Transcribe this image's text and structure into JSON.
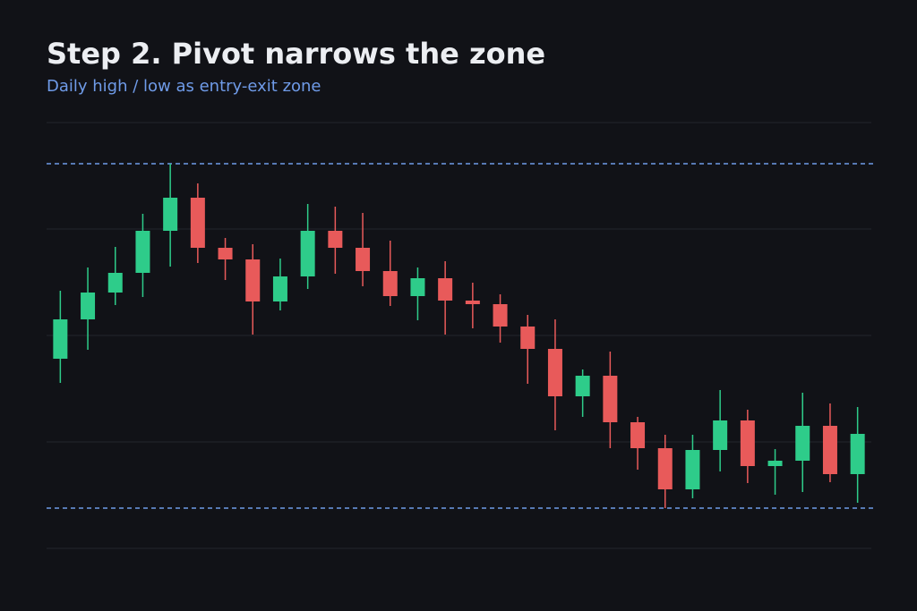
{
  "chart_data": {
    "type": "candlestick",
    "title": "Step 2. Pivot narrows the zone",
    "subtitle": "Daily high / low as entry-exit zone",
    "open": [
      212,
      256,
      286,
      308,
      355,
      392,
      336,
      323,
      276,
      304,
      355,
      336,
      310,
      282,
      302,
      277,
      273,
      248,
      223,
      170,
      193,
      141,
      112,
      66,
      110,
      143,
      92,
      98,
      137,
      83
    ],
    "high": [
      288,
      314,
      337,
      374,
      430,
      408,
      347,
      340,
      324,
      385,
      382,
      375,
      344,
      314,
      321,
      297,
      284,
      261,
      256,
      200,
      220,
      147,
      127,
      127,
      177,
      155,
      111,
      174,
      162,
      158
    ],
    "low": [
      185,
      222,
      272,
      281,
      315,
      319,
      300,
      239,
      266,
      290,
      307,
      293,
      271,
      255,
      239,
      246,
      230,
      184,
      132,
      147,
      112,
      88,
      45,
      56,
      86,
      73,
      60,
      63,
      74,
      51
    ],
    "close": [
      256,
      286,
      308,
      355,
      392,
      336,
      323,
      276,
      304,
      355,
      336,
      310,
      282,
      302,
      277,
      273,
      248,
      223,
      170,
      193,
      141,
      112,
      66,
      110,
      143,
      92,
      98,
      137,
      83,
      128
    ],
    "up_color": "#2ecc8a",
    "down_color": "#e85a5a",
    "hlines": [
      {
        "value": 430,
        "color": "#6f9be8"
      },
      {
        "value": 45,
        "color": "#6f9be8"
      }
    ],
    "ylim": [
      0,
      476
    ],
    "yticks": [
      0,
      119,
      238,
      357,
      476
    ],
    "grid": true
  }
}
